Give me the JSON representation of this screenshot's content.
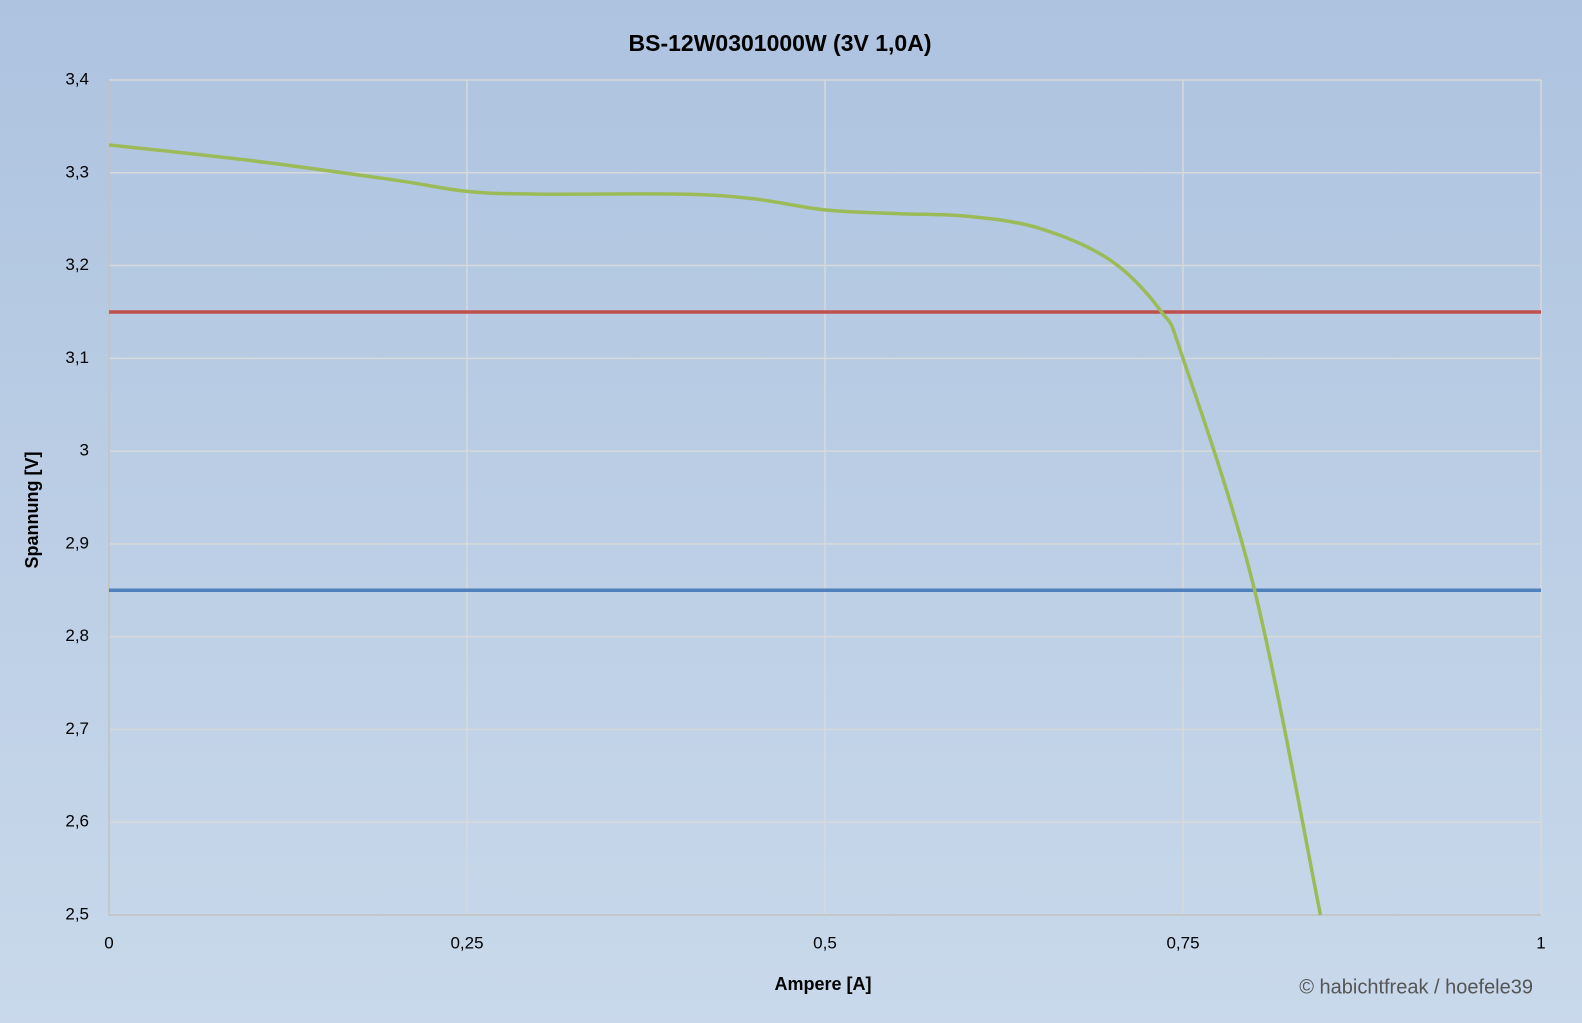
{
  "chart_data": {
    "type": "line",
    "title": "BS-12W0301000W (3V 1,0A)",
    "x_label": "Ampere [A]",
    "y_label": "Spannung [V]",
    "credit": "© habichtfreak / hoefele39",
    "xlim": [
      0,
      1
    ],
    "ylim": [
      2.5,
      3.4
    ],
    "xticks": [
      0,
      {
        "value": 0.25,
        "label": "0,25"
      },
      {
        "value": 0.5,
        "label": "0,5"
      },
      {
        "value": 0.75,
        "label": "0,75"
      },
      1
    ],
    "yticks": [
      {
        "value": 2.5,
        "label": "2,5"
      },
      {
        "value": 2.6,
        "label": "2,6"
      },
      {
        "value": 2.7,
        "label": "2,7"
      },
      {
        "value": 2.8,
        "label": "2,8"
      },
      {
        "value": 2.9,
        "label": "2,9"
      },
      3,
      {
        "value": 3.1,
        "label": "3,1"
      },
      {
        "value": 3.2,
        "label": "3,2"
      },
      {
        "value": 3.3,
        "label": "3,3"
      },
      {
        "value": 3.4,
        "label": "3,4"
      }
    ],
    "grid": true,
    "series": [
      {
        "color": "#c0504d",
        "x": [
          0,
          1
        ],
        "values": [
          3.15,
          3.15
        ]
      },
      {
        "color": "#4f81bd",
        "x": [
          0,
          1
        ],
        "values": [
          2.85,
          2.85
        ]
      },
      {
        "color": "#9bbb59",
        "x": [
          0,
          0.1,
          0.2,
          0.25,
          0.3,
          0.4,
          0.45,
          0.5,
          0.55,
          0.6,
          0.65,
          0.7,
          0.735,
          0.75,
          0.8,
          0.846
        ],
        "values": [
          3.33,
          3.313,
          3.292,
          3.28,
          3.277,
          3.277,
          3.272,
          3.26,
          3.256,
          3.253,
          3.24,
          3.205,
          3.15,
          3.1,
          2.85,
          2.5
        ]
      }
    ]
  }
}
